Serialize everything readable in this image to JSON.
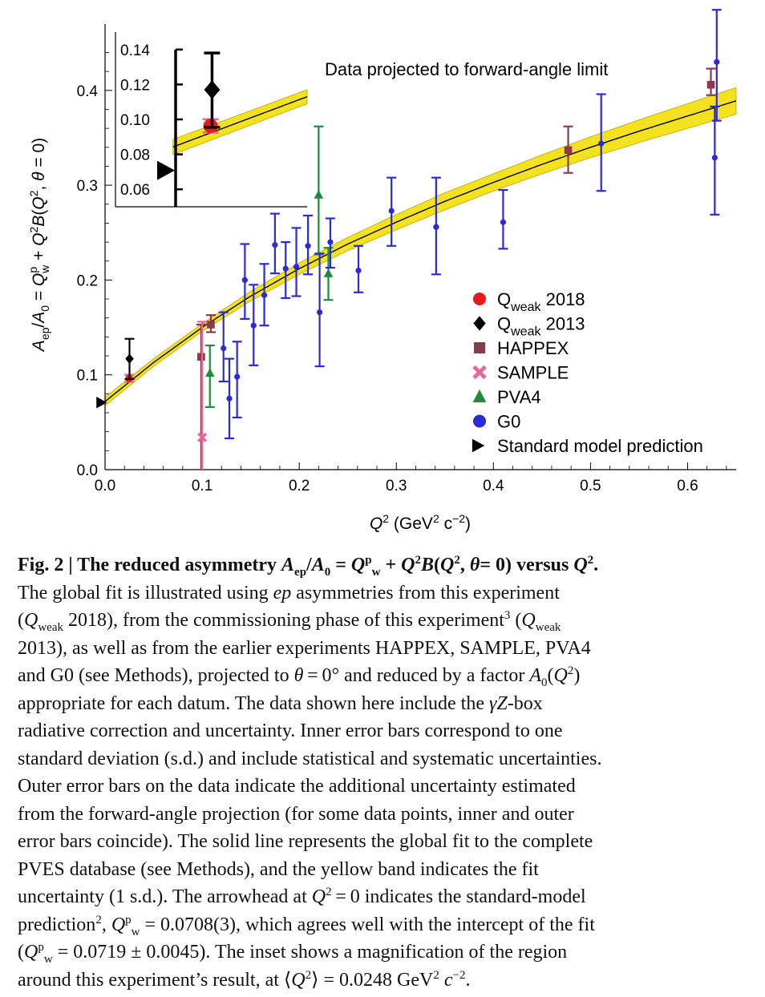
{
  "chart_data": {
    "type": "scatter",
    "title": "",
    "annotation": "Data projected to forward-angle limit",
    "xlabel": "Q² (GeV² c⁻²)",
    "ylabel": "A_ep/A_0 = Q_w^p + Q²B(Q², θ = 0)",
    "xlim": [
      0,
      0.65
    ],
    "ylim": [
      0,
      0.47
    ],
    "x_ticks": [
      "0.0",
      "0.1",
      "0.2",
      "0.3",
      "0.4",
      "0.5",
      "0.6"
    ],
    "y_ticks": [
      "0.0",
      "0.1",
      "0.2",
      "0.3",
      "0.4"
    ],
    "legend_position": "right",
    "fit": {
      "intercept": 0.0719,
      "x": [
        0,
        0.05,
        0.1,
        0.15,
        0.2,
        0.25,
        0.3,
        0.35,
        0.4,
        0.45,
        0.5,
        0.55,
        0.6,
        0.65
      ],
      "y": [
        0.0719,
        0.113,
        0.15,
        0.183,
        0.212,
        0.238,
        0.261,
        0.283,
        0.303,
        0.322,
        0.34,
        0.357,
        0.373,
        0.389
      ],
      "band_halfwidth": [
        0.0045,
        0.004,
        0.004,
        0.005,
        0.006,
        0.007,
        0.008,
        0.009,
        0.009,
        0.01,
        0.011,
        0.012,
        0.013,
        0.014
      ]
    },
    "series": [
      {
        "name": "Q_weak 2018",
        "marker": "circle",
        "color": "#e41a1c",
        "points": [
          {
            "x": 0.0248,
            "y": 0.0963,
            "lo": 0.0925,
            "hi": 0.1001
          }
        ]
      },
      {
        "name": "Q_weak 2013",
        "marker": "diamond",
        "color": "#000000",
        "points": [
          {
            "x": 0.0252,
            "y": 0.117,
            "lo": 0.0955,
            "hi": 0.138
          }
        ]
      },
      {
        "name": "HAPPEX",
        "marker": "square",
        "color": "#8b3a4a",
        "points": [
          {
            "x": 0.099,
            "y": 0.119,
            "lo": 0.0,
            "hi": 0.153
          },
          {
            "x": 0.109,
            "y": 0.153,
            "lo": 0.145,
            "hi": 0.163
          },
          {
            "x": 0.477,
            "y": 0.337,
            "lo": 0.313,
            "hi": 0.362
          },
          {
            "x": 0.624,
            "y": 0.406,
            "lo": 0.395,
            "hi": 0.423
          }
        ]
      },
      {
        "name": "SAMPLE",
        "marker": "cross",
        "color": "#e8679a",
        "points": [
          {
            "x": 0.1,
            "y": 0.034,
            "lo": 0.0,
            "hi": 0.156
          }
        ]
      },
      {
        "name": "PVA4",
        "marker": "triangle",
        "color": "#1e8c3a",
        "points": [
          {
            "x": 0.108,
            "y": 0.102,
            "lo": 0.066,
            "hi": 0.131
          },
          {
            "x": 0.22,
            "y": 0.29,
            "lo": 0.227,
            "hi": 0.362
          },
          {
            "x": 0.23,
            "y": 0.207,
            "lo": 0.179,
            "hi": 0.234
          }
        ]
      },
      {
        "name": "G0",
        "marker": "circle",
        "color": "#2a2ad6",
        "points": [
          {
            "x": 0.122,
            "y": 0.128,
            "lo": 0.093,
            "hi": 0.166
          },
          {
            "x": 0.128,
            "y": 0.075,
            "lo": 0.033,
            "hi": 0.117
          },
          {
            "x": 0.136,
            "y": 0.098,
            "lo": 0.055,
            "hi": 0.135
          },
          {
            "x": 0.144,
            "y": 0.2,
            "lo": 0.159,
            "hi": 0.238
          },
          {
            "x": 0.153,
            "y": 0.152,
            "lo": 0.11,
            "hi": 0.195
          },
          {
            "x": 0.164,
            "y": 0.184,
            "lo": 0.152,
            "hi": 0.217
          },
          {
            "x": 0.175,
            "y": 0.237,
            "lo": 0.207,
            "hi": 0.27
          },
          {
            "x": 0.186,
            "y": 0.212,
            "lo": 0.181,
            "hi": 0.24
          },
          {
            "x": 0.197,
            "y": 0.214,
            "lo": 0.183,
            "hi": 0.255
          },
          {
            "x": 0.209,
            "y": 0.236,
            "lo": 0.206,
            "hi": 0.268
          },
          {
            "x": 0.221,
            "y": 0.166,
            "lo": 0.109,
            "hi": 0.228
          },
          {
            "x": 0.232,
            "y": 0.24,
            "lo": 0.213,
            "hi": 0.265
          },
          {
            "x": 0.261,
            "y": 0.21,
            "lo": 0.187,
            "hi": 0.236
          },
          {
            "x": 0.295,
            "y": 0.273,
            "lo": 0.236,
            "hi": 0.308
          },
          {
            "x": 0.341,
            "y": 0.256,
            "lo": 0.206,
            "hi": 0.308
          },
          {
            "x": 0.41,
            "y": 0.261,
            "lo": 0.233,
            "hi": 0.295
          },
          {
            "x": 0.511,
            "y": 0.344,
            "lo": 0.294,
            "hi": 0.396
          },
          {
            "x": 0.628,
            "y": 0.329,
            "lo": 0.269,
            "hi": 0.383
          },
          {
            "x": 0.63,
            "y": 0.43,
            "lo": 0.368,
            "hi": 0.485
          }
        ]
      },
      {
        "name": "Standard model prediction",
        "marker": "arrowhead",
        "color": "#000000",
        "points": [
          {
            "x": 0.0,
            "y": 0.0708
          }
        ]
      }
    ],
    "inset": {
      "xlim": [
        0,
        0.05
      ],
      "ylim": [
        0.05,
        0.15
      ],
      "y_ticks": [
        "0.14",
        "0.12",
        "0.10",
        "0.08",
        "0.06"
      ],
      "points": [
        {
          "series": "Q_weak 2018",
          "x": 0.0248,
          "y": 0.0963,
          "lo": 0.0925,
          "hi": 0.1001
        },
        {
          "series": "Q_weak 2013",
          "x": 0.0252,
          "y": 0.117,
          "lo": 0.0955,
          "hi": 0.138
        },
        {
          "series": "Standard model prediction",
          "x": 0.0,
          "y": 0.0708
        }
      ]
    }
  },
  "caption": {
    "lines": [
      "<b>Fig. 2 | The reduced asymmetry <i>A</i><sub>ep</sub>/<i>A</i><sub>0</sub> = <i>Q</i><sup>p</sup><sub>w</sub> + <i>Q</i><sup>2</sup><i>B</i>(<i>Q</i><sup>2</sup>, <i>θ</i>= 0) versus <i>Q</i><sup>2</sup>.</b>",
      "The global fit is illustrated using <i>ep</i> asymmetries from this experiment",
      "(<i>Q</i><sub>weak</sub> 2018), from the commissioning phase of this experiment<sup>3</sup> (<i>Q</i><sub>weak</sub>",
      "2013), as well as from the earlier experiments HAPPEX, SAMPLE, PVA4",
      "and G0 (see Methods), projected to <i>θ</i> = 0° and reduced by a factor <i>A</i><sub>0</sub>(<i>Q</i><sup>2</sup>)",
      "appropriate for each datum. The data shown here include the <i>γZ</i>-box",
      "radiative correction and uncertainty. Inner error bars correspond to one",
      "standard deviation (s.d.) and include statistical and systematic uncertainties.",
      "Outer error bars on the data indicate the additional uncertainty estimated",
      "from the forward-angle projection (for some data points, inner and outer",
      "error bars coincide). The solid line represents the global fit to the complete",
      "PVES database (see Methods), and the yellow band indicates the fit",
      "uncertainty (1 s.d.). The arrowhead at <i>Q</i><sup>2</sup> = 0 indicates the standard-model",
      "prediction<sup>2</sup>, <i>Q</i><sup>p</sup><sub>w</sub> = 0.0708(3), which agrees well with the intercept of the fit",
      "(<i>Q</i><sup>p</sup><sub>w</sub> = 0.0719 ± 0.0045). The inset shows a magnification of the region",
      "around this experiment’s result, at ⟨<i>Q</i><sup>2</sup>⟩ = 0.0248 GeV<sup>2</sup> <i>c</i><sup>−2</sup>."
    ]
  }
}
